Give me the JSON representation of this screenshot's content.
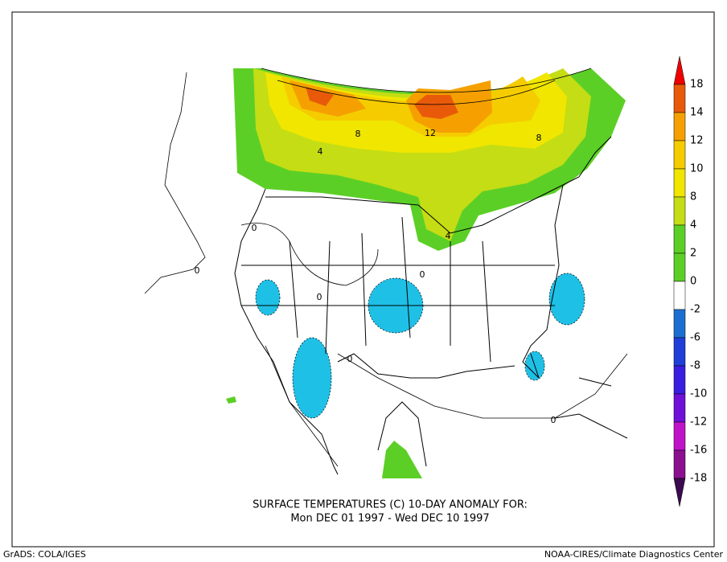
{
  "colorbar": [
    {
      "label": 18,
      "color": "#a00000"
    },
    {
      "label": 14,
      "color": "#e85a0a"
    },
    {
      "label": 12,
      "color": "#f5a000"
    },
    {
      "label": 10,
      "color": "#f5cc00"
    },
    {
      "label": 8,
      "color": "#f0e600"
    },
    {
      "label": 4,
      "color": "#c4dd14"
    },
    {
      "label": 2,
      "color": "#5ccf26"
    },
    {
      "label": 0,
      "color": "#ffffff"
    },
    {
      "label": -2,
      "color": "#1ec0e6"
    },
    {
      "label": -6,
      "color": "#1c6fd0"
    },
    {
      "label": -8,
      "color": "#1f3fd8"
    },
    {
      "label": -10,
      "color": "#3a1ee0"
    },
    {
      "label": -12,
      "color": "#7010d8"
    },
    {
      "label": -16,
      "color": "#c012c8"
    },
    {
      "label": -18,
      "color": "#8a1090"
    }
  ],
  "top_color": "#ee0000",
  "bottom_color": "#3c0a50",
  "contour_labels": [
    "4",
    "8",
    "12",
    "8",
    "4",
    "0",
    "0",
    "0",
    "0",
    "0",
    "0"
  ],
  "title": {
    "line1": "SURFACE TEMPERATURES (C)   10-DAY ANOMALY FOR:",
    "line2": "Mon DEC 01 1997 - Wed DEC 10 1997"
  },
  "footer": {
    "left": "GrADS: COLA/IGES",
    "right": "NOAA-CIRES/Climate Diagnostics Center"
  }
}
